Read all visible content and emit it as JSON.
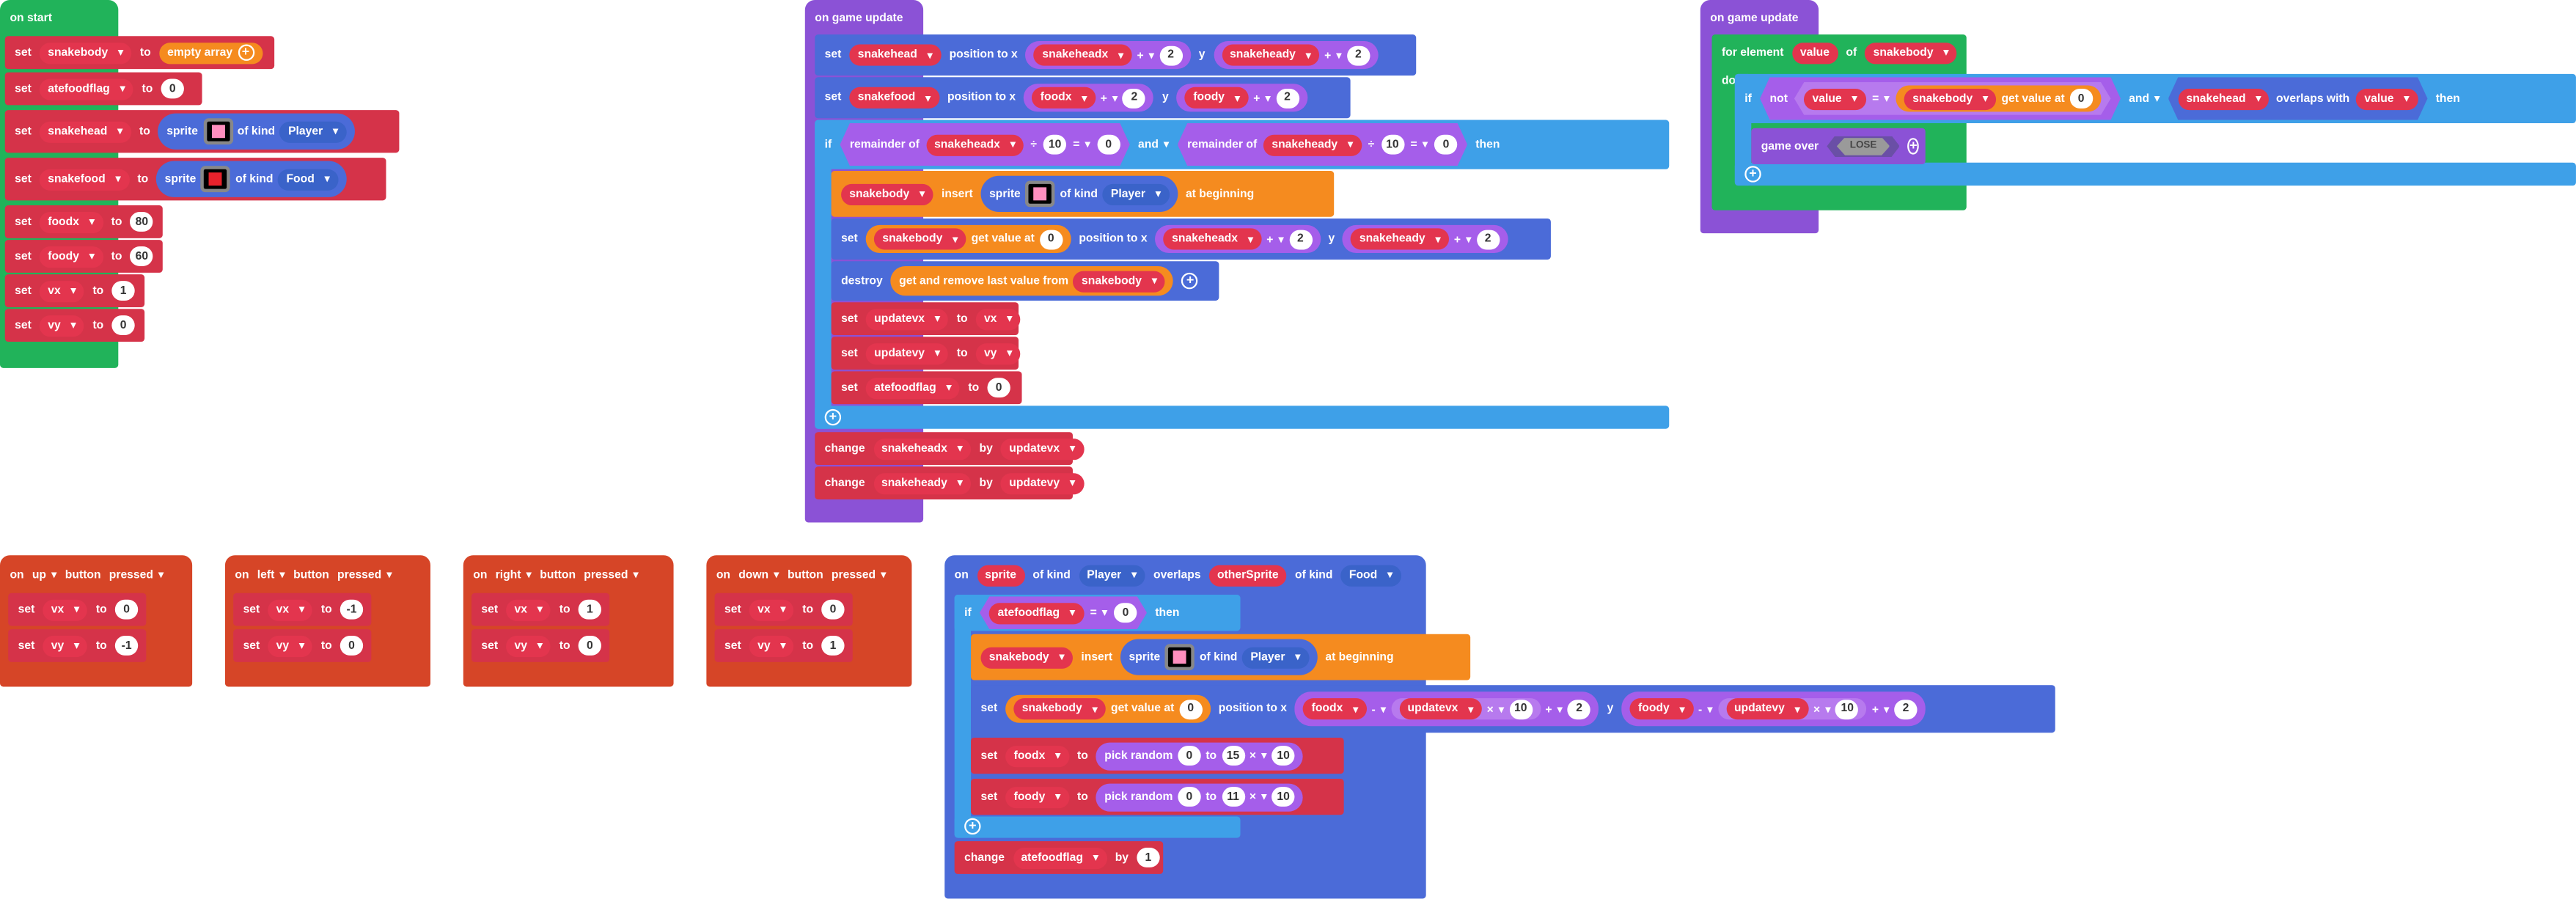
{
  "colors": {
    "loops_green": "#21b35a",
    "events_purple": "#8b52d6",
    "variables_red": "#d5313f",
    "sprites_blue": "#4b6bd8",
    "arrays_orange": "#f58b1f",
    "logic_blue": "#3ea0e8",
    "controller_red": "#d64527",
    "math_purple": "#a55eea"
  },
  "on_start": {
    "title": "on start",
    "rows": [
      {
        "kw": "set",
        "var": "snakebody",
        "to": "to",
        "value": "empty array"
      },
      {
        "kw": "set",
        "var": "atefoodflag",
        "to": "to",
        "value": "0"
      },
      {
        "kw": "set",
        "var": "snakehead",
        "to": "to",
        "fn": "sprite",
        "of_kind": "of kind",
        "kind": "Player"
      },
      {
        "kw": "set",
        "var": "snakefood",
        "to": "to",
        "fn": "sprite",
        "of_kind": "of kind",
        "kind": "Food"
      },
      {
        "kw": "set",
        "var": "foodx",
        "to": "to",
        "value": "80"
      },
      {
        "kw": "set",
        "var": "foody",
        "to": "to",
        "value": "60"
      },
      {
        "kw": "set",
        "var": "vx",
        "to": "to",
        "value": "1"
      },
      {
        "kw": "set",
        "var": "vy",
        "to": "to",
        "value": "0"
      }
    ]
  },
  "update1": {
    "title": "on game update",
    "row1": {
      "kw": "set",
      "var": "snakehead",
      "pos": "position to x",
      "xvar": "snakeheadx",
      "op": "+",
      "xn": "2",
      "y": "y",
      "yvar": "snakeheady",
      "yn": "2"
    },
    "row2": {
      "kw": "set",
      "var": "snakefood",
      "pos": "position to x",
      "xvar": "foodx",
      "op": "+",
      "xn": "2",
      "y": "y",
      "yvar": "foody",
      "yn": "2"
    },
    "if_row": {
      "kw": "if",
      "rem": "remainder of",
      "a": "snakeheadx",
      "div": "÷",
      "n": "10",
      "eq": "=",
      "zero": "0",
      "and": "and",
      "b": "snakeheady",
      "then": "then"
    },
    "insert_row": {
      "var": "snakebody",
      "insert": "insert",
      "fn": "sprite",
      "of_kind": "of kind",
      "kind": "Player",
      "at": "at beginning"
    },
    "setpos_row": {
      "kw": "set",
      "var": "snakebody",
      "get": "get value at",
      "idx": "0",
      "pos": "position to x",
      "xvar": "snakeheadx",
      "op": "+",
      "xn": "2",
      "y": "y",
      "yvar": "snakeheady",
      "yn": "2"
    },
    "destroy_row": {
      "kw": "destroy",
      "fn": "get and remove last value from",
      "var": "snakebody"
    },
    "sets": [
      {
        "kw": "set",
        "var": "updatevx",
        "to": "to",
        "val": "vx"
      },
      {
        "kw": "set",
        "var": "updatevy",
        "to": "to",
        "val": "vy"
      },
      {
        "kw": "set",
        "var": "atefoodflag",
        "to": "to",
        "num": "0"
      }
    ],
    "changes": [
      {
        "kw": "change",
        "var": "snakeheadx",
        "by": "by",
        "val": "updatevx"
      },
      {
        "kw": "change",
        "var": "snakeheady",
        "by": "by",
        "val": "updatevy"
      }
    ]
  },
  "update2": {
    "title": "on game update",
    "for_row": {
      "kw": "for element",
      "el": "value",
      "of": "of",
      "arr": "snakebody"
    },
    "do": "do",
    "if_row": {
      "kw": "if",
      "not": "not",
      "a": "value",
      "eq": "=",
      "arr": "snakebody",
      "get": "get value at",
      "idx": "0",
      "and": "and",
      "head": "snakehead",
      "overlaps": "overlaps with",
      "b": "value",
      "then": "then"
    },
    "gameover": {
      "kw": "game over",
      "arg": "LOSE"
    }
  },
  "buttons": [
    {
      "on": "on",
      "btn": "up",
      "label": "button",
      "evt": "pressed",
      "vx": "0",
      "vy": "-1"
    },
    {
      "on": "on",
      "btn": "left",
      "label": "button",
      "evt": "pressed",
      "vx": "-1",
      "vy": "0"
    },
    {
      "on": "on",
      "btn": "right",
      "label": "button",
      "evt": "pressed",
      "vx": "1",
      "vy": "0"
    },
    {
      "on": "on",
      "btn": "down",
      "label": "button",
      "evt": "pressed",
      "vx": "0",
      "vy": "1"
    }
  ],
  "btn_common": {
    "set": "set",
    "to": "to",
    "vx": "vx",
    "vy": "vy"
  },
  "overlap": {
    "head": {
      "on": "on",
      "sprite": "sprite",
      "of_kind": "of kind",
      "kind": "Player",
      "overlaps": "overlaps",
      "other": "otherSprite",
      "of_kind2": "of kind",
      "kind2": "Food"
    },
    "if_row": {
      "kw": "if",
      "var": "atefoodflag",
      "eq": "=",
      "zero": "0",
      "then": "then"
    },
    "insert_row": {
      "var": "snakebody",
      "insert": "insert",
      "fn": "sprite",
      "of_kind": "of kind",
      "kind": "Player",
      "at": "at beginning"
    },
    "setpos_row": {
      "kw": "set",
      "var": "snakebody",
      "get": "get value at",
      "idx": "0",
      "pos": "position to x",
      "x1": "foodx",
      "minus": "-",
      "x2": "updatevx",
      "times": "×",
      "ten": "10",
      "plus": "+",
      "two": "2",
      "y": "y",
      "y1": "foody",
      "y2": "updatevy"
    },
    "rand_rows": [
      {
        "kw": "set",
        "var": "foodx",
        "to": "to",
        "fn": "pick random",
        "a": "0",
        "mid": "to",
        "b": "15",
        "times": "×",
        "m": "10"
      },
      {
        "kw": "set",
        "var": "foody",
        "to": "to",
        "fn": "pick random",
        "a": "0",
        "mid": "to",
        "b": "11",
        "times": "×",
        "m": "10"
      }
    ],
    "change_row": {
      "kw": "change",
      "var": "atefoodflag",
      "by": "by",
      "n": "1"
    }
  }
}
